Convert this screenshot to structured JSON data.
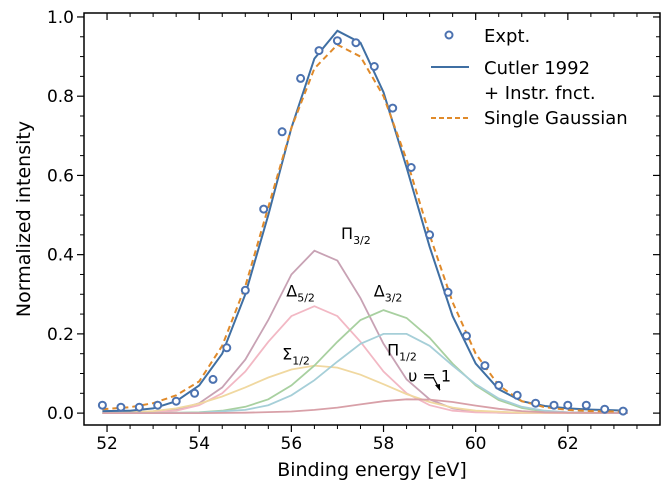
{
  "chart_data": {
    "type": "line",
    "xlabel": "Binding energy [eV]",
    "ylabel": "Normalized intensity",
    "xlim": [
      51.5,
      64.0
    ],
    "ylim": [
      -0.03,
      1.01
    ],
    "xticks": [
      52,
      54,
      56,
      58,
      60,
      62
    ],
    "yticks": [
      0.0,
      0.2,
      0.4,
      0.6,
      0.8,
      1.0
    ],
    "xtick_labels": [
      "52",
      "54",
      "56",
      "58",
      "60",
      "62"
    ],
    "ytick_labels": [
      "0.0",
      "0.2",
      "0.4",
      "0.6",
      "0.8",
      "1.0"
    ],
    "legend_position": "top-right",
    "legend": {
      "expt": "Expt.",
      "cutler_line1": "Cutler 1992",
      "cutler_line2": "+ Instr. fnct.",
      "gauss": "Single Gaussian"
    },
    "series": [
      {
        "name": "Expt.",
        "kind": "scatter",
        "color": "#4c72b0",
        "x": [
          51.9,
          52.3,
          52.7,
          53.1,
          53.5,
          53.9,
          54.3,
          54.6,
          55.0,
          55.4,
          55.8,
          56.2,
          56.6,
          57.0,
          57.4,
          57.8,
          58.2,
          58.6,
          59.0,
          59.4,
          59.8,
          60.2,
          60.5,
          60.9,
          61.3,
          61.7,
          62.0,
          62.4,
          62.8,
          63.2
        ],
        "y": [
          0.02,
          0.015,
          0.015,
          0.02,
          0.03,
          0.05,
          0.085,
          0.165,
          0.31,
          0.515,
          0.71,
          0.845,
          0.915,
          0.94,
          0.935,
          0.875,
          0.77,
          0.62,
          0.45,
          0.305,
          0.195,
          0.12,
          0.07,
          0.045,
          0.025,
          0.02,
          0.02,
          0.02,
          0.01,
          0.005
        ]
      },
      {
        "name": "Cutler 1992 + Instr. fnct.",
        "kind": "line",
        "color": "#3f6fa3",
        "x": [
          51.9,
          52.5,
          53.0,
          53.5,
          54.0,
          54.5,
          55.0,
          55.5,
          56.0,
          56.5,
          57.0,
          57.5,
          58.0,
          58.5,
          59.0,
          59.5,
          60.0,
          60.5,
          61.0,
          61.5,
          62.0,
          62.5,
          63.0,
          63.3
        ],
        "y": [
          0.005,
          0.006,
          0.012,
          0.03,
          0.07,
          0.15,
          0.3,
          0.5,
          0.72,
          0.895,
          0.965,
          0.935,
          0.81,
          0.62,
          0.42,
          0.245,
          0.125,
          0.06,
          0.03,
          0.018,
          0.012,
          0.009,
          0.007,
          0.006
        ]
      },
      {
        "name": "Single Gaussian",
        "kind": "dashed-line",
        "color": "#e08a2a",
        "x": [
          51.9,
          52.5,
          53.0,
          53.5,
          54.0,
          54.5,
          55.0,
          55.5,
          56.0,
          56.5,
          57.0,
          57.5,
          58.0,
          58.5,
          59.0,
          59.5,
          60.0,
          60.5,
          61.0,
          61.5,
          62.0,
          62.5,
          63.0,
          63.3
        ],
        "y": [
          0.01,
          0.015,
          0.025,
          0.045,
          0.08,
          0.17,
          0.32,
          0.52,
          0.72,
          0.87,
          0.93,
          0.9,
          0.8,
          0.64,
          0.45,
          0.28,
          0.15,
          0.07,
          0.03,
          0.015,
          0.008,
          0.005,
          0.004,
          0.004
        ]
      },
      {
        "name": "Π3/2",
        "kind": "component",
        "color": "#c8a2b4",
        "x": [
          51.9,
          52.5,
          53.0,
          53.5,
          54.0,
          54.5,
          55.0,
          55.5,
          56.0,
          56.5,
          57.0,
          57.5,
          58.0,
          58.5,
          59.0,
          59.5,
          60.0,
          60.5,
          61.0,
          62.0,
          63.3
        ],
        "y": [
          0.0,
          0.0,
          0.002,
          0.008,
          0.025,
          0.065,
          0.135,
          0.235,
          0.35,
          0.41,
          0.385,
          0.29,
          0.175,
          0.085,
          0.035,
          0.012,
          0.004,
          0.001,
          0.0,
          0.0,
          0.0
        ]
      },
      {
        "name": "Δ5/2",
        "kind": "component",
        "color": "#f2b8c4",
        "x": [
          51.9,
          52.5,
          53.0,
          53.5,
          54.0,
          54.5,
          55.0,
          55.5,
          56.0,
          56.5,
          57.0,
          57.5,
          58.0,
          58.5,
          59.0,
          59.5,
          60.0,
          61.0,
          63.3
        ],
        "y": [
          0.0,
          0.0,
          0.002,
          0.006,
          0.02,
          0.05,
          0.105,
          0.18,
          0.245,
          0.27,
          0.245,
          0.18,
          0.105,
          0.05,
          0.02,
          0.006,
          0.002,
          0.0,
          0.0
        ]
      },
      {
        "name": "Σ1/2",
        "kind": "component",
        "color": "#f0d8a0",
        "x": [
          51.9,
          52.5,
          53.0,
          53.5,
          54.0,
          54.5,
          55.0,
          55.5,
          56.0,
          56.5,
          57.0,
          57.5,
          58.0,
          58.5,
          59.0,
          59.5,
          60.0,
          61.0,
          63.3
        ],
        "y": [
          0.0,
          0.002,
          0.005,
          0.012,
          0.024,
          0.042,
          0.065,
          0.09,
          0.11,
          0.12,
          0.115,
          0.097,
          0.073,
          0.048,
          0.028,
          0.014,
          0.006,
          0.001,
          0.0
        ]
      },
      {
        "name": "Δ3/2",
        "kind": "component",
        "color": "#a8d0a0",
        "x": [
          51.9,
          53.0,
          54.0,
          54.5,
          55.0,
          55.5,
          56.0,
          56.5,
          57.0,
          57.5,
          58.0,
          58.5,
          59.0,
          59.5,
          60.0,
          60.5,
          61.0,
          61.5,
          62.0,
          63.3
        ],
        "y": [
          0.0,
          0.0,
          0.002,
          0.006,
          0.016,
          0.035,
          0.07,
          0.12,
          0.18,
          0.235,
          0.26,
          0.24,
          0.19,
          0.125,
          0.07,
          0.033,
          0.013,
          0.004,
          0.001,
          0.0
        ]
      },
      {
        "name": "Π1/2",
        "kind": "component",
        "color": "#a6cfd8",
        "x": [
          51.9,
          53.0,
          54.0,
          55.0,
          55.5,
          56.0,
          56.5,
          57.0,
          57.5,
          58.0,
          58.5,
          59.0,
          59.5,
          60.0,
          60.5,
          61.0,
          61.5,
          62.0,
          63.3
        ],
        "y": [
          0.0,
          0.0,
          0.001,
          0.008,
          0.02,
          0.045,
          0.083,
          0.13,
          0.175,
          0.2,
          0.2,
          0.17,
          0.12,
          0.073,
          0.037,
          0.016,
          0.006,
          0.002,
          0.0
        ]
      },
      {
        "name": "υ = 1",
        "kind": "component",
        "color": "#d8a0a8",
        "x": [
          51.9,
          53.0,
          54.0,
          55.0,
          56.0,
          56.5,
          57.0,
          57.5,
          58.0,
          58.5,
          59.0,
          59.5,
          60.0,
          60.5,
          61.0,
          61.5,
          62.0,
          63.3
        ],
        "y": [
          0.0,
          0.0,
          0.0,
          0.001,
          0.004,
          0.008,
          0.014,
          0.022,
          0.03,
          0.035,
          0.034,
          0.028,
          0.019,
          0.011,
          0.005,
          0.002,
          0.001,
          0.0
        ]
      }
    ],
    "annotations": [
      {
        "label_main": "Π",
        "label_sub": "3/2",
        "x": 57.4,
        "y": 0.44
      },
      {
        "label_main": "Δ",
        "label_sub": "5/2",
        "x": 56.2,
        "y": 0.295
      },
      {
        "label_main": "Δ",
        "label_sub": "3/2",
        "x": 58.1,
        "y": 0.295
      },
      {
        "label_main": "Π",
        "label_sub": "1/2",
        "x": 58.4,
        "y": 0.145
      },
      {
        "label_main": "Σ",
        "label_sub": "1/2",
        "x": 56.1,
        "y": 0.135
      },
      {
        "label_main": "υ = 1",
        "label_sub": "",
        "x": 59.0,
        "y": 0.08
      }
    ]
  }
}
